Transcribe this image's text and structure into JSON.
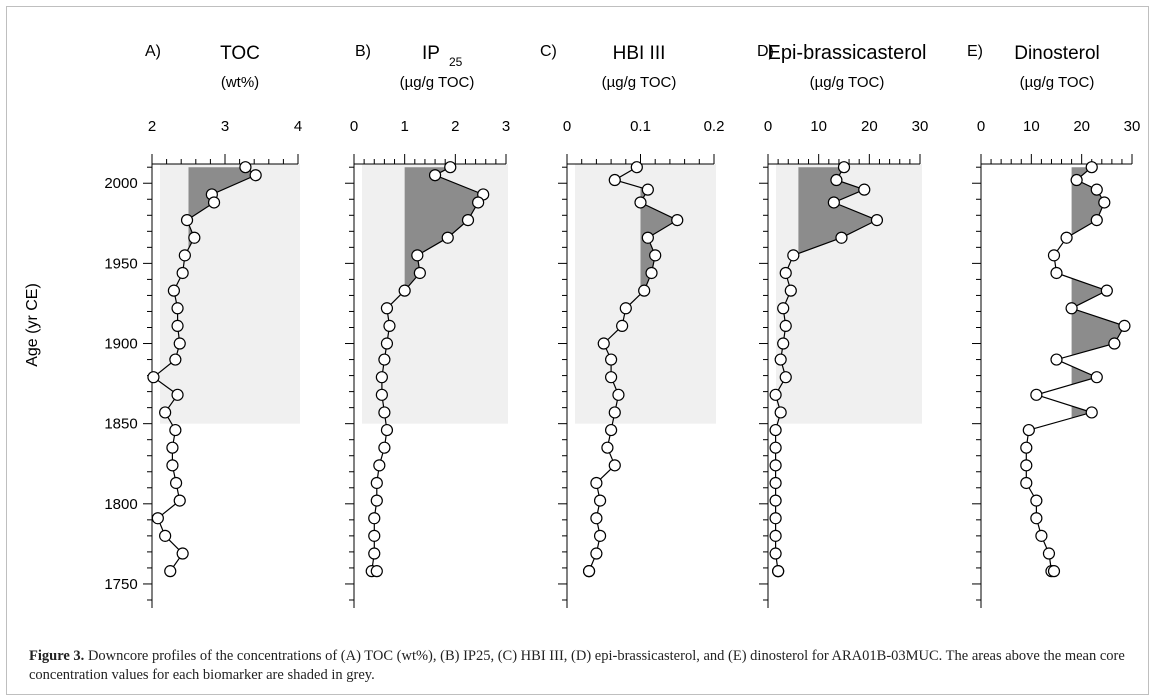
{
  "figure": {
    "caption_label": "Figure 3.",
    "caption_text": " Downcore profiles of the concentrations of (A) TOC (wt%), (B) IP25, (C) HBI III, (D) epi-brassicasterol, and (E) dinosterol for ARA01B-03MUC. The areas above the mean core concentration values for each biomarker are shaded in grey."
  },
  "y_axis": {
    "label": "Age (yr CE)",
    "range": [
      1735,
      2012
    ],
    "ticks": [
      1750,
      1800,
      1850,
      1900,
      1950,
      2000
    ],
    "tick_labels": [
      "1750",
      "1800",
      "1850",
      "1900",
      "1950",
      "2000"
    ]
  },
  "colors": {
    "line": "#000000",
    "shade": "#8c8c8c",
    "band": "#f0f0f0"
  },
  "chart_data": [
    {
      "type": "line",
      "panel": "A)",
      "title": "TOC",
      "unit": "(wt%)",
      "xlim": [
        2,
        4
      ],
      "xticks": [
        2,
        3,
        4
      ],
      "xtick_labels": [
        "2",
        "3",
        "4"
      ],
      "mean": 2.5,
      "series": [
        {
          "x": [
            3.28,
            3.42,
            2.82,
            2.85,
            2.48,
            2.58,
            2.45,
            2.42,
            2.3,
            2.35,
            2.35,
            2.38,
            2.32,
            2.02,
            2.35,
            2.18,
            2.32,
            2.28,
            2.28,
            2.33,
            2.38,
            2.08,
            2.18,
            2.42,
            2.25
          ],
          "y": [
            2010,
            2005,
            1993,
            1988,
            1977,
            1966,
            1955,
            1944,
            1933,
            1922,
            1911,
            1900,
            1890,
            1879,
            1868,
            1857,
            1846,
            1835,
            1824,
            1813,
            1802,
            1791,
            1780,
            1769,
            1758
          ]
        }
      ]
    },
    {
      "type": "line",
      "panel": "B)",
      "title": "IP",
      "title_sub": "25",
      "unit": "(µg/g TOC)",
      "xlim": [
        0,
        3
      ],
      "xticks": [
        0,
        1,
        2,
        3
      ],
      "xtick_labels": [
        "0",
        "1",
        "2",
        "3"
      ],
      "mean": 1.0,
      "series": [
        {
          "x": [
            1.9,
            1.6,
            2.55,
            2.45,
            2.25,
            1.85,
            1.25,
            1.3,
            1.0,
            0.65,
            0.7,
            0.65,
            0.6,
            0.55,
            0.55,
            0.6,
            0.65,
            0.6,
            0.5,
            0.45,
            0.45,
            0.4,
            0.4,
            0.4,
            0.35,
            0.45
          ],
          "y": [
            2010,
            2005,
            1993,
            1988,
            1977,
            1966,
            1955,
            1944,
            1933,
            1922,
            1911,
            1900,
            1890,
            1879,
            1868,
            1857,
            1846,
            1835,
            1824,
            1813,
            1802,
            1791,
            1780,
            1769,
            1758,
            1758
          ]
        }
      ]
    },
    {
      "type": "line",
      "panel": "C)",
      "title": "HBI III",
      "unit": "(µg/g TOC)",
      "xlim": [
        0,
        0.2
      ],
      "xticks": [
        0,
        0.1,
        0.2
      ],
      "xtick_labels": [
        "0",
        "0.1",
        "0.2"
      ],
      "mean": 0.1,
      "series": [
        {
          "x": [
            0.095,
            0.065,
            0.11,
            0.1,
            0.15,
            0.11,
            0.12,
            0.115,
            0.105,
            0.08,
            0.075,
            0.05,
            0.06,
            0.06,
            0.07,
            0.065,
            0.06,
            0.055,
            0.065,
            0.04,
            0.045,
            0.04,
            0.045,
            0.04,
            0.03,
            0.03
          ],
          "y": [
            2010,
            2002,
            1996,
            1988,
            1977,
            1966,
            1955,
            1944,
            1933,
            1922,
            1911,
            1900,
            1890,
            1879,
            1868,
            1857,
            1846,
            1835,
            1824,
            1813,
            1802,
            1791,
            1780,
            1769,
            1758,
            1758
          ]
        }
      ]
    },
    {
      "type": "line",
      "panel": "D)",
      "title": "Epi-brassicasterol",
      "unit": "(µg/g TOC)",
      "xlim": [
        0,
        30
      ],
      "xticks": [
        0,
        10,
        20,
        30
      ],
      "xtick_labels": [
        "0",
        "10",
        "20",
        "30"
      ],
      "mean": 6,
      "series": [
        {
          "x": [
            15,
            13.5,
            19,
            13,
            21.5,
            14.5,
            5,
            3.5,
            4.5,
            3,
            3.5,
            3,
            2.5,
            3.5,
            1.5,
            2.5,
            1.5,
            1.5,
            1.5,
            1.5,
            1.5,
            1.5,
            1.5,
            1.5,
            2,
            2
          ],
          "y": [
            2010,
            2002,
            1996,
            1988,
            1977,
            1966,
            1955,
            1944,
            1933,
            1922,
            1911,
            1900,
            1890,
            1879,
            1868,
            1857,
            1846,
            1835,
            1824,
            1813,
            1802,
            1791,
            1780,
            1769,
            1758,
            1758
          ]
        }
      ]
    },
    {
      "type": "line",
      "panel": "E)",
      "title": "Dinosterol",
      "unit": "(µg/g TOC)",
      "xlim": [
        0,
        30
      ],
      "xticks": [
        0,
        10,
        20,
        30
      ],
      "xtick_labels": [
        "0",
        "10",
        "20",
        "30"
      ],
      "mean": 18,
      "series": [
        {
          "x": [
            22,
            19,
            23,
            24.5,
            23,
            17,
            14.5,
            15,
            25,
            18,
            28.5,
            26.5,
            15,
            23,
            11,
            22,
            9.5,
            9,
            9,
            9,
            11,
            11,
            12,
            13.5,
            14,
            14.5
          ],
          "y": [
            2010,
            2002,
            1996,
            1988,
            1977,
            1966,
            1955,
            1944,
            1933,
            1922,
            1911,
            1900,
            1890,
            1879,
            1868,
            1857,
            1846,
            1835,
            1824,
            1813,
            1802,
            1791,
            1780,
            1769,
            1758,
            1758
          ]
        }
      ]
    }
  ]
}
